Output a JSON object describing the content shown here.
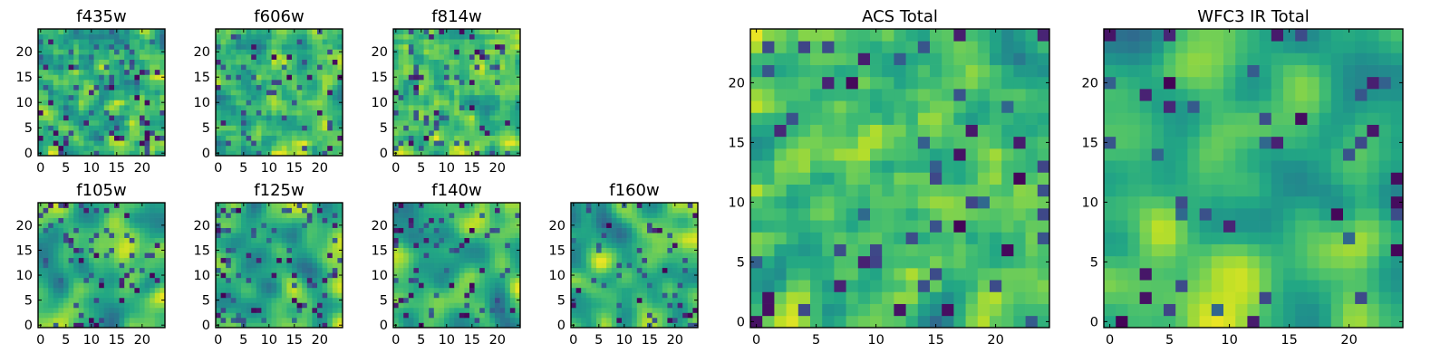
{
  "chart_data": {
    "type": "heatmap",
    "colormap": "viridis",
    "grid": false,
    "panels": [
      {
        "title": "f435w",
        "size": 25,
        "xticks": [
          0,
          5,
          10,
          15,
          20
        ],
        "yticks": [
          0,
          5,
          10,
          15,
          20
        ],
        "smooth": 0.6,
        "dark_fraction": 0.04
      },
      {
        "title": "f606w",
        "size": 25,
        "xticks": [
          0,
          5,
          10,
          15,
          20
        ],
        "yticks": [
          0,
          5,
          10,
          15,
          20
        ],
        "smooth": 0.5,
        "dark_fraction": 0.04
      },
      {
        "title": "f814w",
        "size": 25,
        "xticks": [
          0,
          5,
          10,
          15,
          20
        ],
        "yticks": [
          0,
          5,
          10,
          15,
          20
        ],
        "smooth": 0.6,
        "dark_fraction": 0.05
      },
      {
        "title": "f105w",
        "size": 25,
        "xticks": [
          0,
          5,
          10,
          15,
          20
        ],
        "yticks": [
          0,
          5,
          10,
          15,
          20
        ],
        "smooth": 1.3,
        "dark_fraction": 0.04
      },
      {
        "title": "f125w",
        "size": 25,
        "xticks": [
          0,
          5,
          10,
          15,
          20
        ],
        "yticks": [
          0,
          5,
          10,
          15,
          20
        ],
        "smooth": 1.4,
        "dark_fraction": 0.04
      },
      {
        "title": "f140w",
        "size": 25,
        "xticks": [
          0,
          5,
          10,
          15,
          20
        ],
        "yticks": [
          0,
          5,
          10,
          15,
          20
        ],
        "smooth": 1.3,
        "dark_fraction": 0.04
      },
      {
        "title": "f160w",
        "size": 25,
        "xticks": [
          0,
          5,
          10,
          15,
          20
        ],
        "yticks": [
          0,
          5,
          10,
          15,
          20
        ],
        "smooth": 1.4,
        "dark_fraction": 0.03
      },
      {
        "title": "ACS Total",
        "size": 25,
        "xticks": [
          0,
          5,
          10,
          15,
          20
        ],
        "yticks": [
          0,
          5,
          10,
          15,
          20
        ],
        "smooth": 0.7,
        "dark_fraction": 0.03
      },
      {
        "title": "WFC3 IR Total",
        "size": 25,
        "xticks": [
          0,
          5,
          10,
          15,
          20
        ],
        "yticks": [
          0,
          5,
          10,
          15,
          20
        ],
        "smooth": 1.3,
        "dark_fraction": 0.02
      }
    ]
  }
}
